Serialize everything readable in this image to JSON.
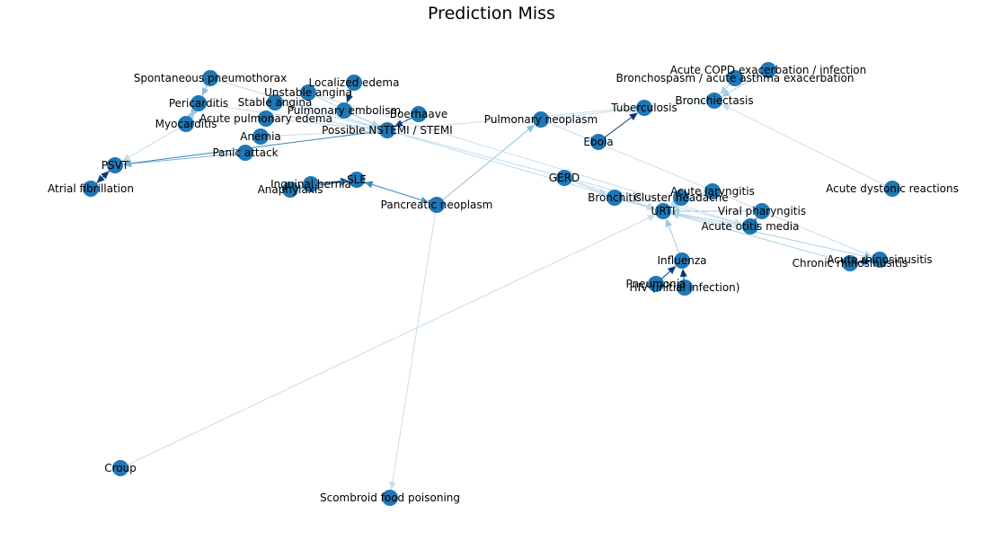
{
  "title": "Prediction Miss",
  "node_color": "#1f77b4",
  "nodes": [
    {
      "id": "spont_ptx",
      "label": "Spontaneous pneumothorax"
    },
    {
      "id": "localized_edema",
      "label": "Localized edema"
    },
    {
      "id": "unstable_angina",
      "label": "Unstable angina"
    },
    {
      "id": "pericarditis",
      "label": "Pericarditis"
    },
    {
      "id": "stable_angina",
      "label": "Stable angina"
    },
    {
      "id": "pulm_embolism",
      "label": "Pulmonary embolism"
    },
    {
      "id": "boerhaave",
      "label": "Boerhaave"
    },
    {
      "id": "myocarditis",
      "label": "Myocarditis"
    },
    {
      "id": "acute_pulm_edema",
      "label": "Acute pulmonary edema"
    },
    {
      "id": "nstemi",
      "label": "Possible NSTEMI / STEMI"
    },
    {
      "id": "anemia",
      "label": "Anemia"
    },
    {
      "id": "panic_attack",
      "label": "Panic attack"
    },
    {
      "id": "psvt",
      "label": "PSVT"
    },
    {
      "id": "afib",
      "label": "Atrial fibrillation"
    },
    {
      "id": "inguinal_hernia",
      "label": "Inguinal hernia"
    },
    {
      "id": "sle",
      "label": "SLE"
    },
    {
      "id": "anaphylaxis",
      "label": "Anaphylaxis"
    },
    {
      "id": "pancreatic_neoplasm",
      "label": "Pancreatic neoplasm"
    },
    {
      "id": "pulm_neoplasm",
      "label": "Pulmonary neoplasm"
    },
    {
      "id": "tuberculosis",
      "label": "Tuberculosis"
    },
    {
      "id": "ebola",
      "label": "Ebola"
    },
    {
      "id": "copd",
      "label": "Acute COPD exacerbation / infection"
    },
    {
      "id": "bronchospasm",
      "label": "Bronchospasm / acute asthma exacerbation"
    },
    {
      "id": "bronchiectasis",
      "label": "Bronchiectasis"
    },
    {
      "id": "gerd",
      "label": "GERD"
    },
    {
      "id": "acute_dystonic",
      "label": "Acute dystonic reactions"
    },
    {
      "id": "bronchitis",
      "label": "Bronchitis"
    },
    {
      "id": "cluster_headache",
      "label": "Cluster headache"
    },
    {
      "id": "acute_laryngitis",
      "label": "Acute laryngitis"
    },
    {
      "id": "urti",
      "label": "URTI"
    },
    {
      "id": "viral_pharyngitis",
      "label": "Viral pharyngitis"
    },
    {
      "id": "acute_otitis_media",
      "label": "Acute otitis media"
    },
    {
      "id": "acute_rhinosinusitis",
      "label": "Acute rhinosinusitis"
    },
    {
      "id": "chronic_rhinosinusitis",
      "label": "Chronic rhinosinusitis"
    },
    {
      "id": "influenza",
      "label": "Influenza"
    },
    {
      "id": "pneumonia",
      "label": "Pneumonia"
    },
    {
      "id": "hiv",
      "label": "HIV (initial infection)"
    },
    {
      "id": "croup",
      "label": "Croup"
    },
    {
      "id": "scombroid",
      "label": "Scombroid food poisoning"
    }
  ],
  "edges": [
    {
      "source": "nstemi",
      "target": "psvt",
      "weight": 0.55
    },
    {
      "source": "panic_attack",
      "target": "psvt",
      "weight": 0.35
    },
    {
      "source": "afib",
      "target": "psvt",
      "weight": 0.95
    },
    {
      "source": "psvt",
      "target": "afib",
      "weight": 0.9
    },
    {
      "source": "spont_ptx",
      "target": "pericarditis",
      "weight": 0.3
    },
    {
      "source": "pericarditis",
      "target": "myocarditis",
      "weight": 0.3
    },
    {
      "source": "myocarditis",
      "target": "pericarditis",
      "weight": 0.25
    },
    {
      "source": "localized_edema",
      "target": "pulm_embolism",
      "weight": 0.95
    },
    {
      "source": "unstable_angina",
      "target": "nstemi",
      "weight": 0.15
    },
    {
      "source": "stable_angina",
      "target": "nstemi",
      "weight": 0.15
    },
    {
      "source": "pulm_embolism",
      "target": "nstemi",
      "weight": 0.15
    },
    {
      "source": "boerhaave",
      "target": "nstemi",
      "weight": 0.9
    },
    {
      "source": "acute_pulm_edema",
      "target": "nstemi",
      "weight": 0.15
    },
    {
      "source": "anemia",
      "target": "nstemi",
      "weight": 0.12
    },
    {
      "source": "spont_ptx",
      "target": "nstemi",
      "weight": 0.15
    },
    {
      "source": "pericarditis",
      "target": "nstemi",
      "weight": 0.12
    },
    {
      "source": "myocarditis",
      "target": "psvt",
      "weight": 0.12
    },
    {
      "source": "inguinal_hernia",
      "target": "sle",
      "weight": 0.95
    },
    {
      "source": "anaphylaxis",
      "target": "sle",
      "weight": 0.6
    },
    {
      "source": "pancreatic_neoplasm",
      "target": "sle",
      "weight": 0.55
    },
    {
      "source": "sle",
      "target": "pancreatic_neoplasm",
      "weight": 0.45
    },
    {
      "source": "pancreatic_neoplasm",
      "target": "pulm_neoplasm",
      "weight": 0.3
    },
    {
      "source": "pancreatic_neoplasm",
      "target": "scombroid",
      "weight": 0.1
    },
    {
      "source": "ebola",
      "target": "tuberculosis",
      "weight": 0.95
    },
    {
      "source": "copd",
      "target": "bronchiectasis",
      "weight": 0.25
    },
    {
      "source": "bronchospasm",
      "target": "bronchiectasis",
      "weight": 0.2
    },
    {
      "source": "nstemi",
      "target": "bronchiectasis",
      "weight": 0.1
    },
    {
      "source": "pulm_neoplasm",
      "target": "tuberculosis",
      "weight": 0.1
    },
    {
      "source": "gerd",
      "target": "urti",
      "weight": 0.1
    },
    {
      "source": "bronchitis",
      "target": "urti",
      "weight": 0.35
    },
    {
      "source": "cluster_headache",
      "target": "urti",
      "weight": 0.15
    },
    {
      "source": "acute_laryngitis",
      "target": "urti",
      "weight": 0.2
    },
    {
      "source": "viral_pharyngitis",
      "target": "urti",
      "weight": 0.25
    },
    {
      "source": "acute_otitis_media",
      "target": "urti",
      "weight": 0.2
    },
    {
      "source": "acute_rhinosinusitis",
      "target": "urti",
      "weight": 0.2
    },
    {
      "source": "chronic_rhinosinusitis",
      "target": "urti",
      "weight": 0.2
    },
    {
      "source": "acute_otitis_media",
      "target": "viral_pharyngitis",
      "weight": 0.55
    },
    {
      "source": "acute_rhinosinusitis",
      "target": "chronic_rhinosinusitis",
      "weight": 0.85
    },
    {
      "source": "chronic_rhinosinusitis",
      "target": "acute_rhinosinusitis",
      "weight": 0.8
    },
    {
      "source": "influenza",
      "target": "urti",
      "weight": 0.25
    },
    {
      "source": "pneumonia",
      "target": "influenza",
      "weight": 0.9
    },
    {
      "source": "hiv",
      "target": "influenza",
      "weight": 0.95
    },
    {
      "source": "croup",
      "target": "urti",
      "weight": 0.1
    },
    {
      "source": "acute_dystonic",
      "target": "bronchiectasis",
      "weight": 0.08
    },
    {
      "source": "nstemi",
      "target": "urti",
      "weight": 0.12
    },
    {
      "source": "nstemi",
      "target": "acute_otitis_media",
      "weight": 0.12
    },
    {
      "source": "unstable_angina",
      "target": "acute_otitis_media",
      "weight": 0.1
    },
    {
      "source": "pulm_neoplasm",
      "target": "acute_rhinosinusitis",
      "weight": 0.1
    },
    {
      "source": "gerd",
      "target": "bronchitis",
      "weight": 0.12
    }
  ]
}
